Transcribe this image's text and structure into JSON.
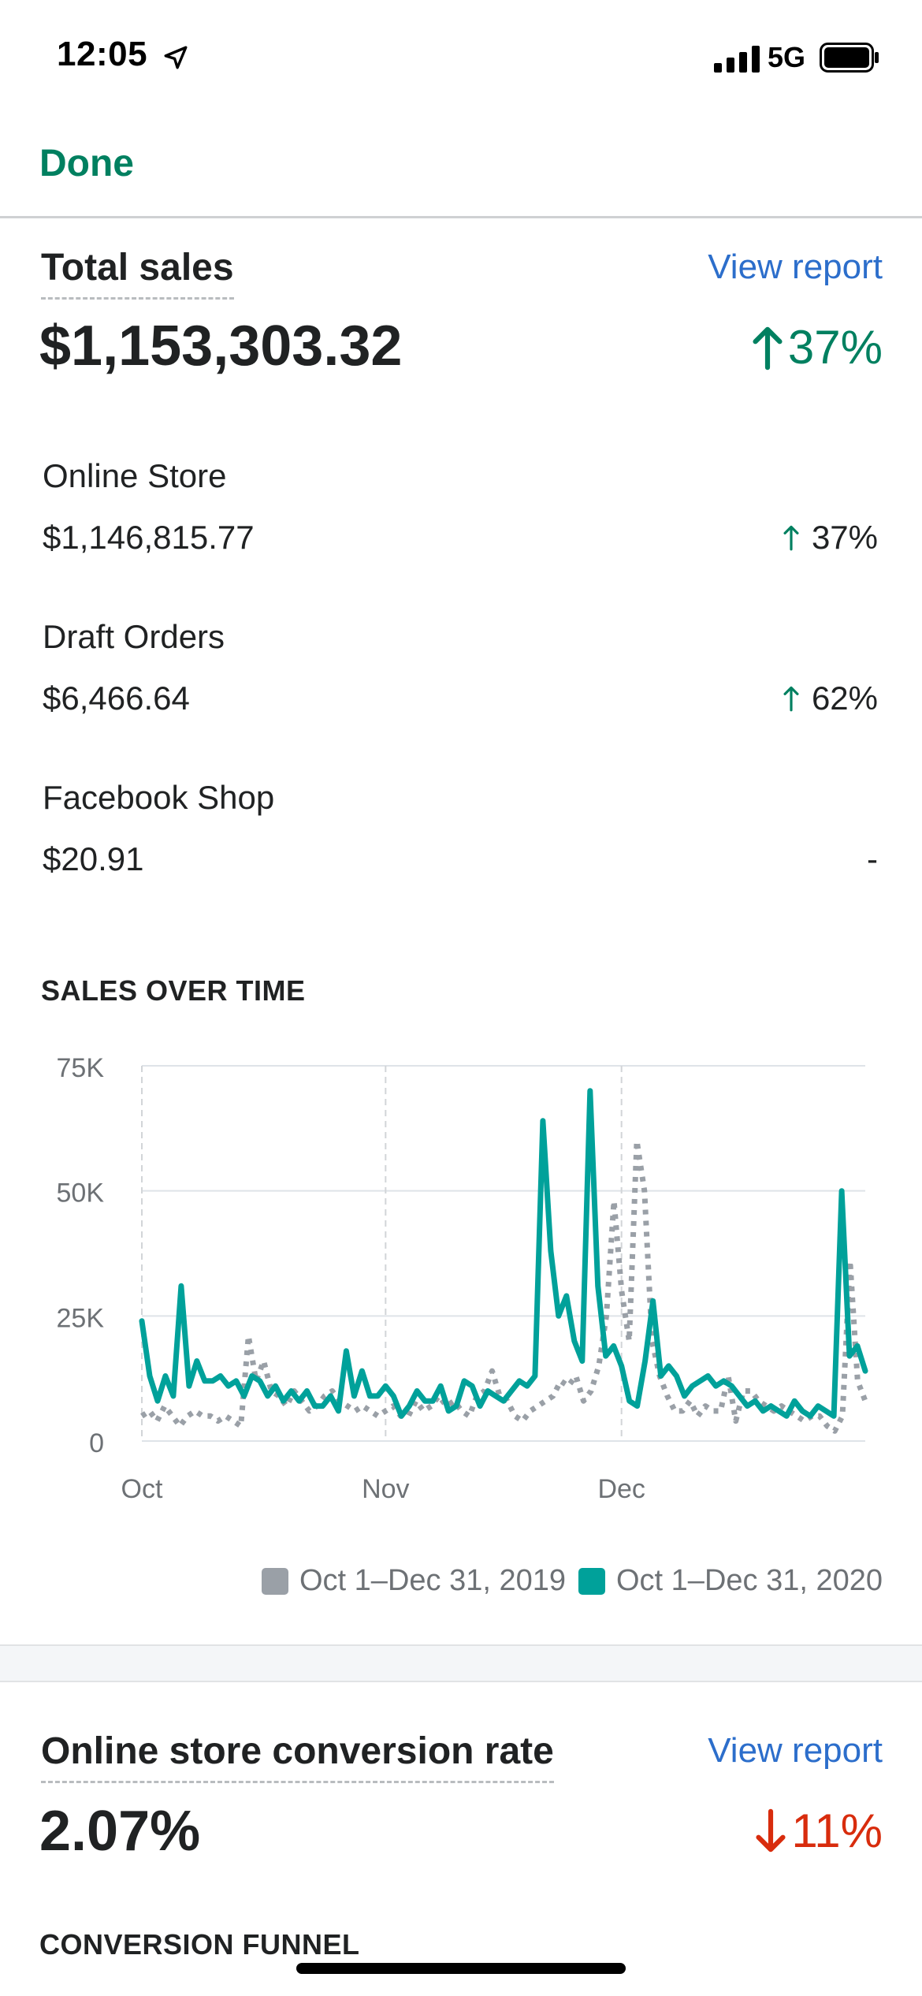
{
  "status_bar": {
    "time": "12:05",
    "network": "5G"
  },
  "nav": {
    "done_label": "Done"
  },
  "total_sales": {
    "title": "Total sales",
    "view_report": "View report",
    "value": "$1,153,303.32",
    "change": "37%",
    "channels": [
      {
        "name": "Online Store",
        "value": "$1,146,815.77",
        "change": "37%"
      },
      {
        "name": "Draft Orders",
        "value": "$6,466.64",
        "change": "62%"
      },
      {
        "name": "Facebook Shop",
        "value": "$20.91",
        "change": "-"
      }
    ]
  },
  "sales_over_time": {
    "label": "SALES OVER TIME",
    "legend": [
      "Oct 1–Dec 31, 2019",
      "Oct 1–Dec 31, 2020"
    ]
  },
  "chart_data": {
    "type": "line",
    "title": "SALES OVER TIME",
    "x_tick_labels": [
      "Oct",
      "Nov",
      "Dec"
    ],
    "y_tick_labels": [
      "0",
      "25K",
      "50K",
      "75K"
    ],
    "ylim": [
      0,
      75000
    ],
    "grid": true,
    "legend_position": "bottom-right",
    "series": [
      {
        "name": "Oct 1–Dec 31, 2019",
        "color": "#9aa0a7",
        "style": "dotted",
        "values": [
          5000,
          6000,
          4000,
          7000,
          5000,
          3000,
          5000,
          6000,
          5000,
          5000,
          4000,
          5000,
          4000,
          3000,
          21000,
          12000,
          16000,
          10000,
          9000,
          7000,
          10000,
          8000,
          6000,
          7000,
          9000,
          10000,
          8000,
          7000,
          6000,
          7000,
          6000,
          5000,
          6000,
          7000,
          5000,
          5000,
          8000,
          6000,
          7000,
          9000,
          7000,
          8000,
          6000,
          5000,
          9000,
          10000,
          14000,
          9000,
          8000,
          5000,
          4000,
          6000,
          7000,
          8000,
          9000,
          12000,
          11000,
          13000,
          8000,
          10000,
          15000,
          25000,
          48000,
          30000,
          20000,
          60000,
          50000,
          20000,
          13000,
          9000,
          6000,
          6000,
          8000,
          5000,
          7000,
          6000,
          6000,
          13000,
          4000,
          10000,
          10000,
          8000,
          7000,
          6000,
          7000,
          6000,
          5000,
          4000,
          5000,
          5000,
          3000,
          2000,
          5000,
          36000,
          12000,
          8000
        ]
      },
      {
        "name": "Oct 1–Dec 31, 2020",
        "color": "#00a19a",
        "style": "solid",
        "values": [
          24000,
          13000,
          8000,
          13000,
          9000,
          31000,
          11000,
          16000,
          12000,
          12000,
          13000,
          11000,
          12000,
          9000,
          13000,
          12000,
          9000,
          11000,
          8000,
          10000,
          8000,
          10000,
          7000,
          7000,
          9000,
          6000,
          18000,
          9000,
          14000,
          9000,
          9000,
          11000,
          9000,
          5000,
          7000,
          10000,
          8000,
          8000,
          11000,
          6000,
          7000,
          12000,
          11000,
          7000,
          10000,
          9000,
          8000,
          10000,
          12000,
          11000,
          13000,
          64000,
          38000,
          25000,
          29000,
          20000,
          16000,
          70000,
          31000,
          17000,
          19000,
          15000,
          8000,
          7000,
          16000,
          28000,
          13000,
          15000,
          13000,
          9000,
          11000,
          12000,
          13000,
          11000,
          12000,
          11000,
          9000,
          7000,
          8000,
          6000,
          7000,
          6000,
          5000,
          8000,
          6000,
          5000,
          7000,
          6000,
          5000,
          50000,
          17000,
          19000,
          14000
        ]
      }
    ]
  },
  "conversion": {
    "title": "Online store conversion rate",
    "view_report": "View report",
    "value": "2.07%",
    "change": "11%",
    "funnel_label": "CONVERSION FUNNEL"
  },
  "colors": {
    "accent": "#008060",
    "link": "#2c6ecb",
    "negative": "#d82c0d",
    "series_2020": "#00a19a",
    "series_2019": "#9aa0a7"
  }
}
